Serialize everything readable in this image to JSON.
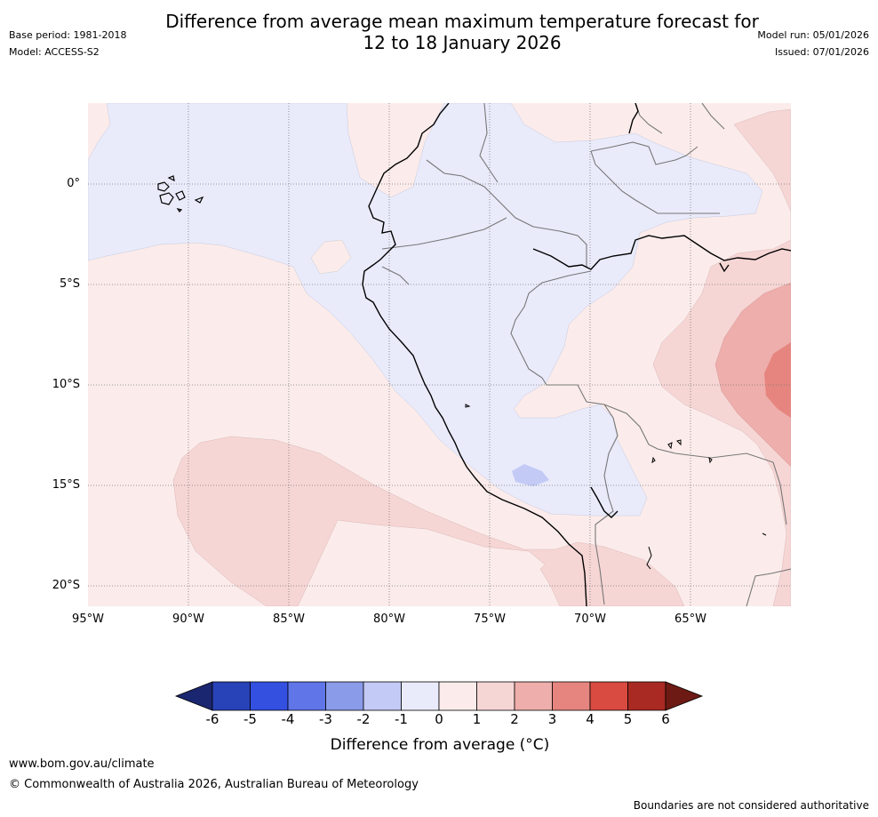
{
  "title": {
    "line1": "Difference from average mean maximum temperature forecast for",
    "line2": "12 to 18 January 2026"
  },
  "meta": {
    "base_period": "Base period: 1981-2018",
    "model": "Model: ACCESS-S2",
    "model_run": "Model run: 05/01/2026",
    "issued": "Issued: 07/01/2026"
  },
  "map": {
    "lat_labels": [
      "0°",
      "5°S",
      "10°S",
      "15°S",
      "20°S"
    ],
    "lon_labels": [
      "95°W",
      "90°W",
      "85°W",
      "80°W",
      "75°W",
      "70°W",
      "65°W"
    ]
  },
  "colorbar": {
    "ticks": [
      "-6",
      "-5",
      "-4",
      "-3",
      "-2",
      "-1",
      "0",
      "1",
      "2",
      "3",
      "4",
      "5",
      "6"
    ],
    "colors": [
      "#1b2670",
      "#2842b8",
      "#3350e0",
      "#5f75e8",
      "#8a9bea",
      "#c3caf5",
      "#e9ebfb",
      "#fbeceb",
      "#f6d6d5",
      "#eeaeab",
      "#e6857f",
      "#d94a40",
      "#a82a22",
      "#6e1a14"
    ],
    "label": "Difference from average (°C)"
  },
  "footer": {
    "url": "www.bom.gov.au/climate",
    "copyright": "© Commonwealth of Australia 2026, Australian Bureau of Meteorology",
    "disclaimer": "Boundaries are not considered authoritative"
  }
}
